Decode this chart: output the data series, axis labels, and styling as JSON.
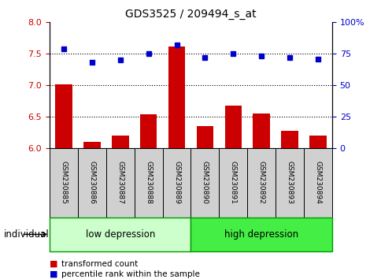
{
  "title": "GDS3525 / 209494_s_at",
  "samples": [
    "GSM230885",
    "GSM230886",
    "GSM230887",
    "GSM230888",
    "GSM230889",
    "GSM230890",
    "GSM230891",
    "GSM230892",
    "GSM230893",
    "GSM230894"
  ],
  "bar_values": [
    7.01,
    6.1,
    6.2,
    6.54,
    7.62,
    6.35,
    6.67,
    6.55,
    6.27,
    6.2
  ],
  "dot_values": [
    79,
    68,
    70,
    75,
    82,
    72,
    75,
    73,
    72,
    71
  ],
  "bar_color": "#cc0000",
  "dot_color": "#0000cc",
  "ylim_left": [
    6,
    8
  ],
  "ylim_right": [
    0,
    100
  ],
  "yticks_left": [
    6.0,
    6.5,
    7.0,
    7.5,
    8.0
  ],
  "yticks_right": [
    0,
    25,
    50,
    75,
    100
  ],
  "ytick_labels_right": [
    "0",
    "25",
    "50",
    "75",
    "100%"
  ],
  "low_dep_color": "#ccffcc",
  "high_dep_color": "#44ee44",
  "group_edge_color": "#009900",
  "sample_box_color": "#d0d0d0",
  "individual_label": "individual",
  "legend_items": [
    {
      "label": "transformed count",
      "color": "#cc0000"
    },
    {
      "label": "percentile rank within the sample",
      "color": "#0000cc"
    }
  ],
  "bar_bottom": 6.0,
  "bar_width": 0.6
}
